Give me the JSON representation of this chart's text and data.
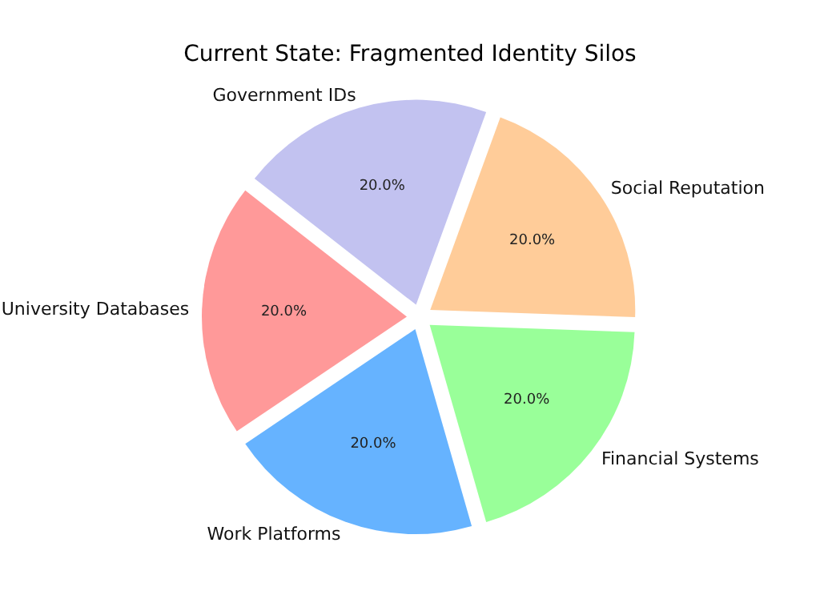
{
  "chart_data": {
    "type": "pie",
    "title": "Current State: Fragmented Identity Silos",
    "categories": [
      "Social Reputation",
      "Government IDs",
      "University Databases",
      "Work Platforms",
      "Financial Systems"
    ],
    "values": [
      20,
      20,
      20,
      20,
      20
    ],
    "colors": [
      "#ffcc99",
      "#c2c2f0",
      "#ff9999",
      "#66b3ff",
      "#99ff99"
    ],
    "value_labels": [
      "20.0%",
      "20.0%",
      "20.0%",
      "20.0%",
      "20.0%"
    ],
    "legend": false
  }
}
